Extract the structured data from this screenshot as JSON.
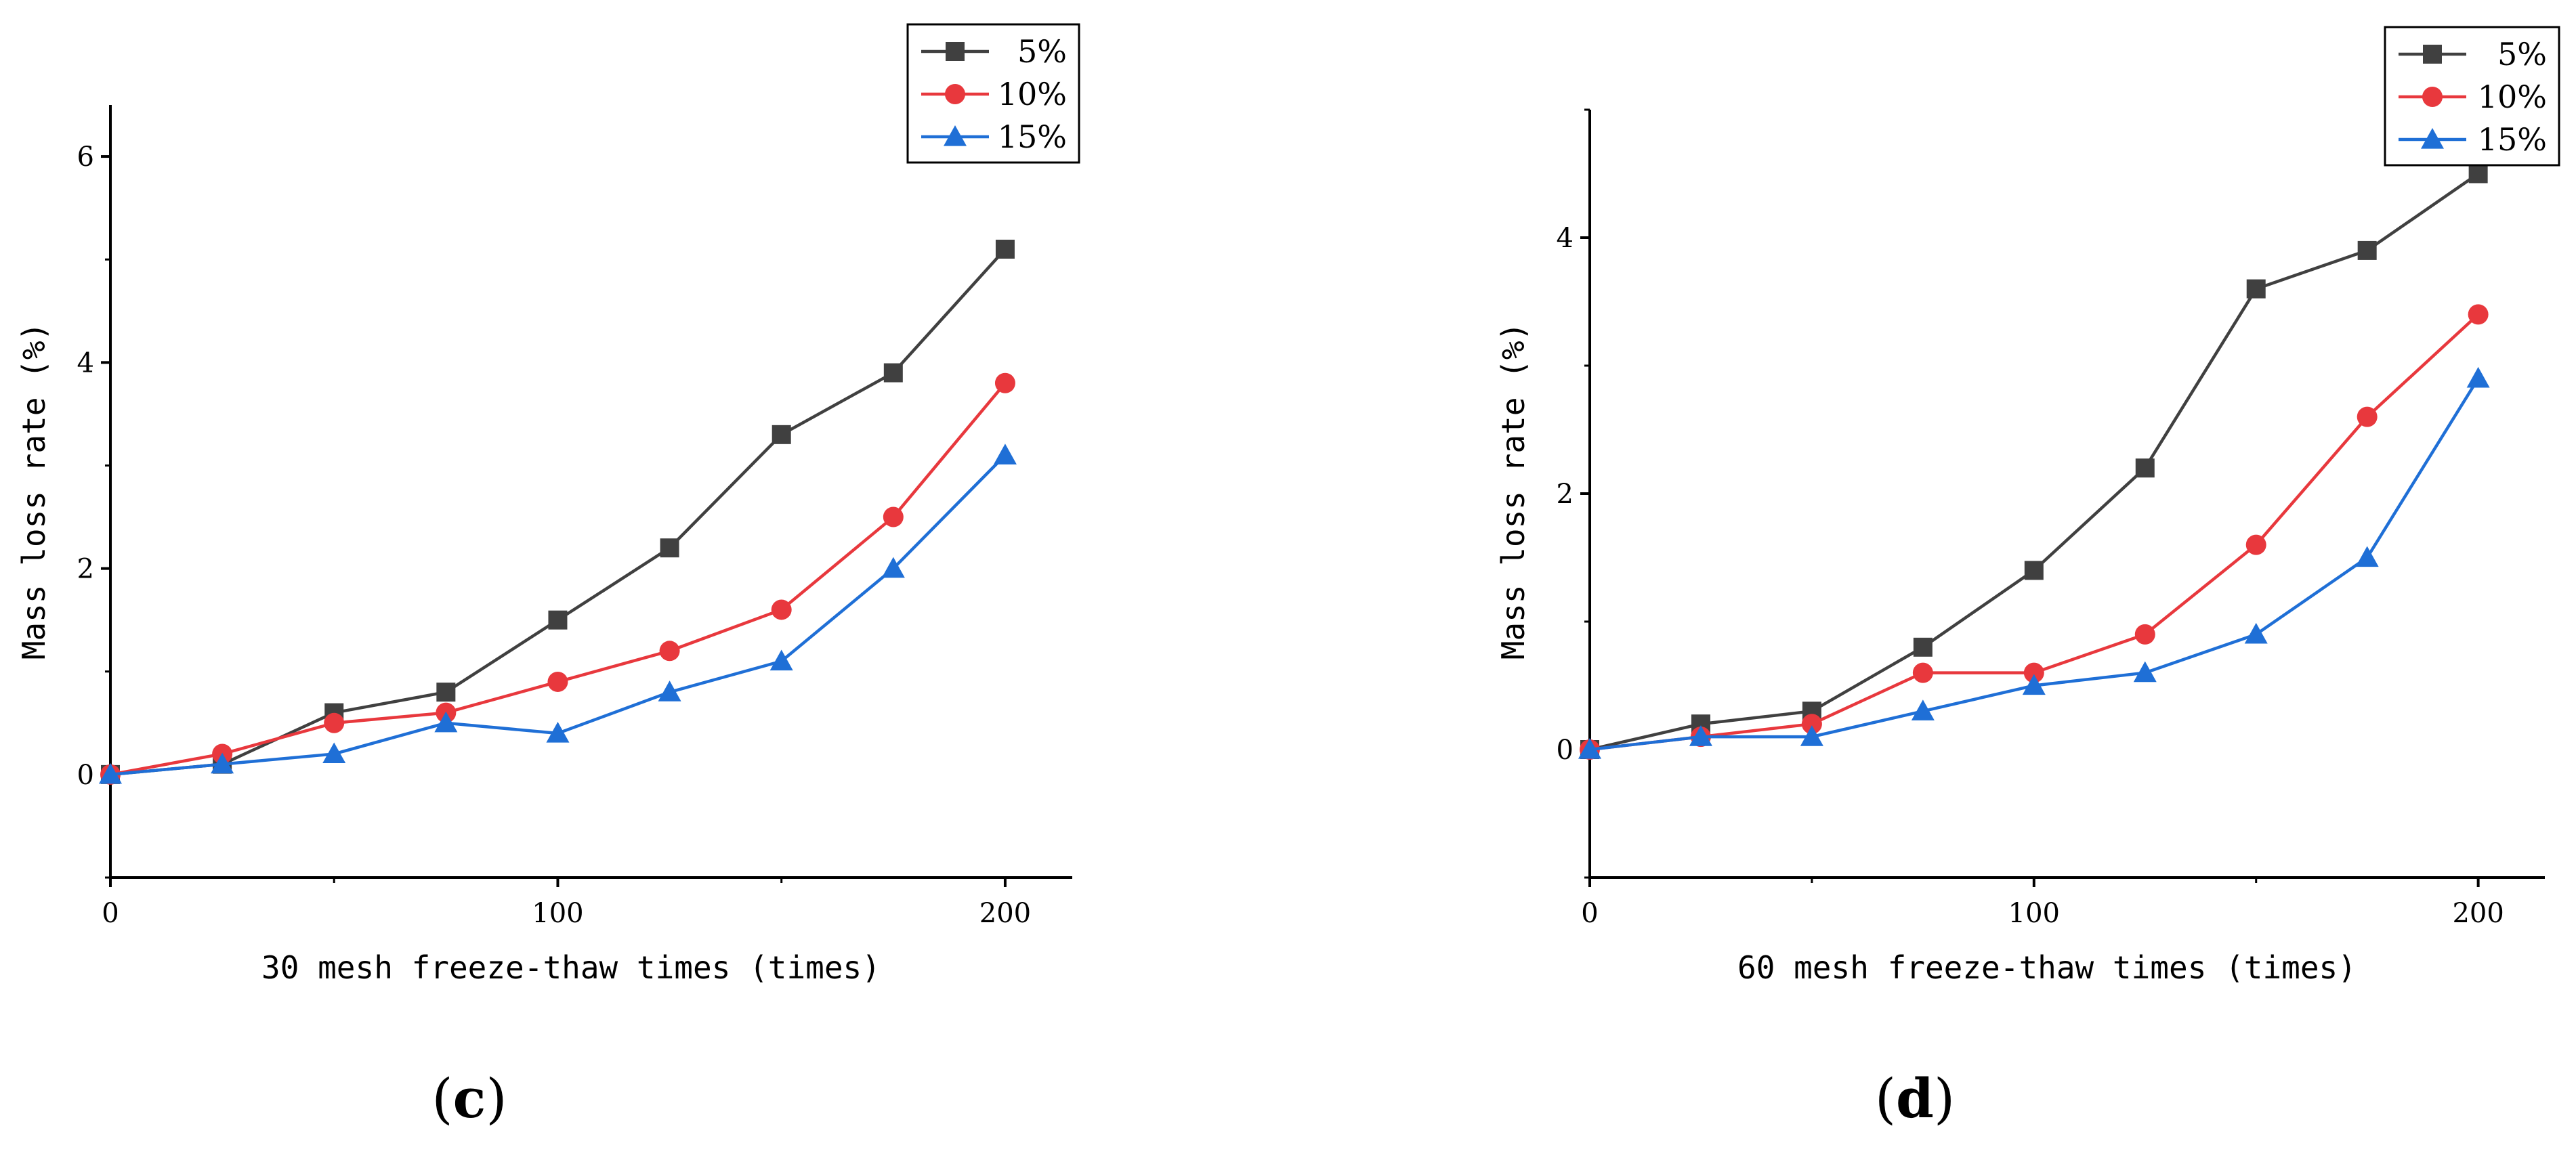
{
  "chart_data": [
    {
      "type": "line",
      "panel_label": {
        "open": "(",
        "letter": "c",
        "close": ")"
      },
      "xlabel": "30 mesh freeze-thaw times (times)",
      "ylabel": "Mass loss rate (%)",
      "xlim": [
        0,
        215
      ],
      "ylim": [
        -1,
        6.5
      ],
      "xticks": [
        0,
        100,
        200
      ],
      "xtick_labels": [
        "0",
        "100",
        "200"
      ],
      "yticks": [
        0,
        2,
        4,
        6
      ],
      "ytick_labels": [
        "0",
        "2",
        "4",
        "6"
      ],
      "x": [
        0,
        25,
        50,
        75,
        100,
        125,
        150,
        175,
        200
      ],
      "legend_position": "top-right",
      "series": [
        {
          "name": "5%",
          "color": "#404040",
          "marker": "square",
          "values": [
            0,
            0.1,
            0.6,
            0.8,
            1.5,
            2.2,
            3.3,
            3.9,
            5.1
          ]
        },
        {
          "name": "10%",
          "color": "#e8383d",
          "marker": "circle",
          "values": [
            0,
            0.2,
            0.5,
            0.6,
            0.9,
            1.2,
            1.6,
            2.5,
            3.8
          ]
        },
        {
          "name": "15%",
          "color": "#1f6fd6",
          "marker": "triangle",
          "values": [
            0,
            0.1,
            0.2,
            0.5,
            0.4,
            0.8,
            1.1,
            2.0,
            3.1
          ]
        }
      ]
    },
    {
      "type": "line",
      "panel_label": {
        "open": "(",
        "letter": "d",
        "close": ")"
      },
      "xlabel": "60 mesh freeze-thaw times (times)",
      "ylabel": "Mass loss rate (%)",
      "xlim": [
        0,
        215
      ],
      "ylim": [
        -1,
        5
      ],
      "xticks": [
        0,
        100,
        200
      ],
      "xtick_labels": [
        "0",
        "100",
        "200"
      ],
      "yticks": [
        0,
        2,
        4
      ],
      "ytick_labels": [
        "0",
        "2",
        "4"
      ],
      "x": [
        0,
        25,
        50,
        75,
        100,
        125,
        150,
        175,
        200
      ],
      "legend_position": "top-right",
      "series": [
        {
          "name": "5%",
          "color": "#404040",
          "marker": "square",
          "values": [
            0,
            0.2,
            0.3,
            0.8,
            1.4,
            2.2,
            3.6,
            3.9,
            4.5
          ]
        },
        {
          "name": "10%",
          "color": "#e8383d",
          "marker": "circle",
          "values": [
            0,
            0.1,
            0.2,
            0.6,
            0.6,
            0.9,
            1.6,
            2.6,
            3.4
          ]
        },
        {
          "name": "15%",
          "color": "#1f6fd6",
          "marker": "triangle",
          "values": [
            0,
            0.1,
            0.1,
            0.3,
            0.5,
            0.6,
            0.9,
            1.5,
            2.9
          ]
        }
      ]
    }
  ]
}
